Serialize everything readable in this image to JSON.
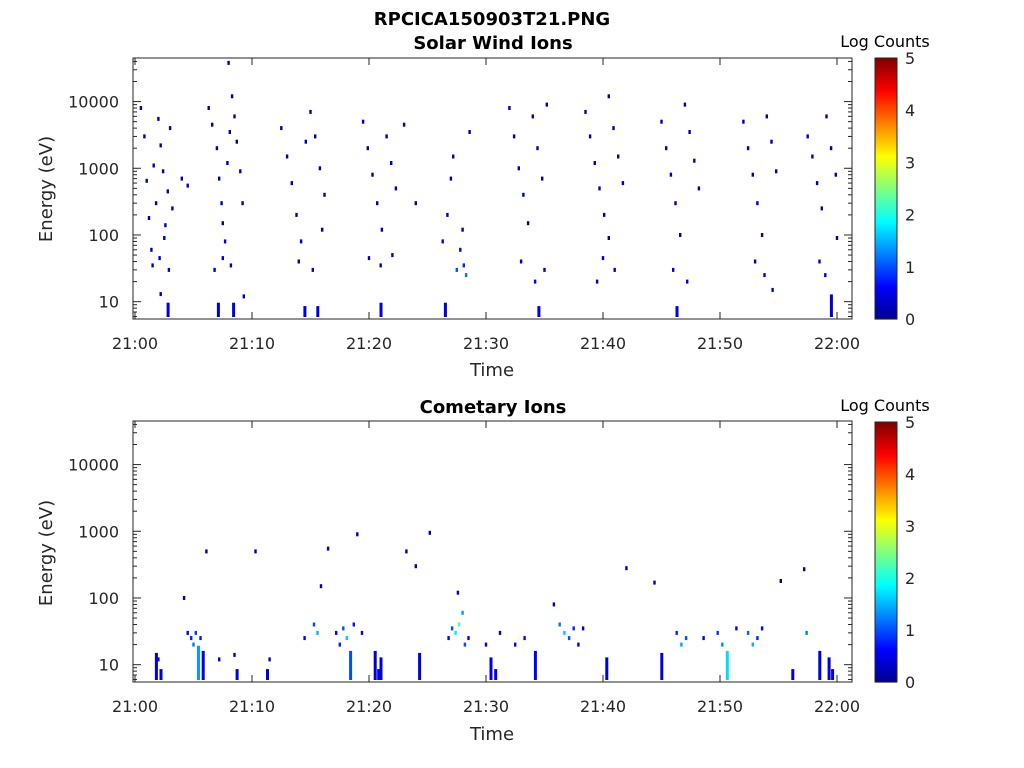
{
  "figure_title": "RPCICA150903T21.PNG",
  "panels": [
    {
      "title": "Solar Wind Ions",
      "xlabel": "Time",
      "ylabel": "Energy (eV)",
      "colorbar_label": "Log Counts"
    },
    {
      "title": "Cometary Ions",
      "xlabel": "Time",
      "ylabel": "Energy (eV)",
      "colorbar_label": "Log Counts"
    }
  ],
  "x_ticks": [
    "21:00",
    "21:10",
    "21:20",
    "21:30",
    "21:40",
    "21:50",
    "22:00"
  ],
  "y_ticks": [
    "10",
    "100",
    "1000",
    "10000"
  ],
  "colorbar_ticks": [
    "0",
    "1",
    "2",
    "3",
    "4",
    "5"
  ],
  "colormap": [
    "#00008f",
    "#0000ff",
    "#0080ff",
    "#00ffff",
    "#80ff80",
    "#ffff00",
    "#ff8000",
    "#ff0000",
    "#800000"
  ],
  "chart_data": [
    {
      "type": "heatmap",
      "title": "Solar Wind Ions",
      "xlabel": "Time",
      "ylabel": "Energy (eV)",
      "x_range": [
        "21:00",
        "22:00"
      ],
      "ylim": [
        5.5,
        45000
      ],
      "y_scale": "log",
      "color_range": [
        0,
        5
      ],
      "colorbar_label": "Log Counts",
      "points": [
        {
          "t": 0.5,
          "e": 8000,
          "c": 0.3
        },
        {
          "t": 0.8,
          "e": 3000,
          "c": 0.2
        },
        {
          "t": 1.0,
          "e": 650,
          "c": 0.2
        },
        {
          "t": 1.2,
          "e": 180,
          "c": 0.2
        },
        {
          "t": 1.4,
          "e": 60,
          "c": 0.2
        },
        {
          "t": 1.6,
          "e": 1100,
          "c": 0.2
        },
        {
          "t": 1.8,
          "e": 300,
          "c": 0.2
        },
        {
          "t": 2.0,
          "e": 5500,
          "c": 0.2
        },
        {
          "t": 2.2,
          "e": 2200,
          "c": 0.2
        },
        {
          "t": 2.4,
          "e": 900,
          "c": 0.2
        },
        {
          "t": 2.6,
          "e": 140,
          "c": 0.2
        },
        {
          "t": 2.8,
          "e": 450,
          "c": 0.2
        },
        {
          "t": 3.0,
          "e": 4000,
          "c": 0.2
        },
        {
          "t": 3.2,
          "e": 250,
          "c": 0.2
        },
        {
          "t": 2.5,
          "e": 90,
          "c": 0.2
        },
        {
          "t": 1.5,
          "e": 35,
          "c": 0.3
        },
        {
          "t": 2.1,
          "e": 45,
          "c": 0.2
        },
        {
          "t": 2.9,
          "e": 30,
          "c": 0.3
        },
        {
          "t": 4.0,
          "e": 700,
          "c": 0.2
        },
        {
          "t": 4.5,
          "e": 550,
          "c": 0.2
        },
        {
          "t": 2.2,
          "e": 13,
          "c": 0.3
        },
        {
          "t": 2.8,
          "e": 9,
          "c": 0.4
        },
        {
          "t": 6.3,
          "e": 8000,
          "c": 0.2
        },
        {
          "t": 6.6,
          "e": 4500,
          "c": 0.2
        },
        {
          "t": 7.0,
          "e": 2000,
          "c": 0.2
        },
        {
          "t": 7.2,
          "e": 700,
          "c": 0.2
        },
        {
          "t": 7.4,
          "e": 300,
          "c": 0.2
        },
        {
          "t": 7.5,
          "e": 150,
          "c": 0.2
        },
        {
          "t": 7.7,
          "e": 80,
          "c": 0.3
        },
        {
          "t": 7.9,
          "e": 1200,
          "c": 0.2
        },
        {
          "t": 8.1,
          "e": 3500,
          "c": 0.2
        },
        {
          "t": 8.3,
          "e": 12000,
          "c": 0.2
        },
        {
          "t": 8.5,
          "e": 6000,
          "c": 0.2
        },
        {
          "t": 8.7,
          "e": 2500,
          "c": 0.2
        },
        {
          "t": 9.0,
          "e": 900,
          "c": 0.2
        },
        {
          "t": 9.2,
          "e": 300,
          "c": 0.2
        },
        {
          "t": 8.0,
          "e": 38000,
          "c": 0.2
        },
        {
          "t": 7.5,
          "e": 45,
          "c": 0.3
        },
        {
          "t": 8.2,
          "e": 35,
          "c": 0.3
        },
        {
          "t": 6.8,
          "e": 30,
          "c": 0.3
        },
        {
          "t": 7.1,
          "e": 9,
          "c": 0.4
        },
        {
          "t": 8.4,
          "e": 9,
          "c": 0.4
        },
        {
          "t": 9.3,
          "e": 12,
          "c": 0.3
        },
        {
          "t": 12.5,
          "e": 4000,
          "c": 0.2
        },
        {
          "t": 13.0,
          "e": 1500,
          "c": 0.2
        },
        {
          "t": 13.4,
          "e": 600,
          "c": 0.2
        },
        {
          "t": 13.8,
          "e": 200,
          "c": 0.2
        },
        {
          "t": 14.2,
          "e": 80,
          "c": 0.3
        },
        {
          "t": 14.6,
          "e": 2500,
          "c": 0.2
        },
        {
          "t": 15.0,
          "e": 7000,
          "c": 0.2
        },
        {
          "t": 15.4,
          "e": 3000,
          "c": 0.2
        },
        {
          "t": 15.8,
          "e": 1000,
          "c": 0.2
        },
        {
          "t": 16.2,
          "e": 400,
          "c": 0.2
        },
        {
          "t": 14.0,
          "e": 40,
          "c": 0.3
        },
        {
          "t": 15.2,
          "e": 30,
          "c": 0.3
        },
        {
          "t": 14.5,
          "e": 8,
          "c": 0.4
        },
        {
          "t": 15.6,
          "e": 8,
          "c": 0.4
        },
        {
          "t": 16.0,
          "e": 120,
          "c": 0.2
        },
        {
          "t": 19.5,
          "e": 5000,
          "c": 0.2
        },
        {
          "t": 19.9,
          "e": 2000,
          "c": 0.2
        },
        {
          "t": 20.3,
          "e": 800,
          "c": 0.2
        },
        {
          "t": 20.7,
          "e": 300,
          "c": 0.2
        },
        {
          "t": 21.1,
          "e": 120,
          "c": 0.2
        },
        {
          "t": 21.5,
          "e": 3000,
          "c": 0.2
        },
        {
          "t": 21.9,
          "e": 1200,
          "c": 0.2
        },
        {
          "t": 22.3,
          "e": 500,
          "c": 0.2
        },
        {
          "t": 20.0,
          "e": 45,
          "c": 0.3
        },
        {
          "t": 21.0,
          "e": 35,
          "c": 0.3
        },
        {
          "t": 22.0,
          "e": 50,
          "c": 0.3
        },
        {
          "t": 21.0,
          "e": 9,
          "c": 0.4
        },
        {
          "t": 23.0,
          "e": 4500,
          "c": 0.2
        },
        {
          "t": 24.0,
          "e": 300,
          "c": 0.2
        },
        {
          "t": 26.3,
          "e": 80,
          "c": 0.5
        },
        {
          "t": 26.7,
          "e": 200,
          "c": 0.2
        },
        {
          "t": 27.2,
          "e": 1500,
          "c": 0.2
        },
        {
          "t": 27.5,
          "e": 30,
          "c": 1.0
        },
        {
          "t": 27.8,
          "e": 60,
          "c": 0.6
        },
        {
          "t": 28.1,
          "e": 35,
          "c": 0.8
        },
        {
          "t": 28.3,
          "e": 25,
          "c": 1.2
        },
        {
          "t": 28.6,
          "e": 3500,
          "c": 0.2
        },
        {
          "t": 27.0,
          "e": 700,
          "c": 0.2
        },
        {
          "t": 28.0,
          "e": 120,
          "c": 0.2
        },
        {
          "t": 26.5,
          "e": 9,
          "c": 0.4
        },
        {
          "t": 32.0,
          "e": 8000,
          "c": 0.2
        },
        {
          "t": 32.4,
          "e": 3000,
          "c": 0.2
        },
        {
          "t": 32.8,
          "e": 1000,
          "c": 0.2
        },
        {
          "t": 33.2,
          "e": 400,
          "c": 0.2
        },
        {
          "t": 33.6,
          "e": 150,
          "c": 0.2
        },
        {
          "t": 34.0,
          "e": 6000,
          "c": 0.2
        },
        {
          "t": 34.4,
          "e": 2000,
          "c": 0.2
        },
        {
          "t": 34.8,
          "e": 700,
          "c": 0.2
        },
        {
          "t": 35.2,
          "e": 9000,
          "c": 0.2
        },
        {
          "t": 33.0,
          "e": 40,
          "c": 0.3
        },
        {
          "t": 34.2,
          "e": 20,
          "c": 0.5
        },
        {
          "t": 35.0,
          "e": 30,
          "c": 0.3
        },
        {
          "t": 34.5,
          "e": 8,
          "c": 0.4
        },
        {
          "t": 38.5,
          "e": 7000,
          "c": 0.2
        },
        {
          "t": 38.9,
          "e": 3000,
          "c": 0.2
        },
        {
          "t": 39.3,
          "e": 1200,
          "c": 0.2
        },
        {
          "t": 39.7,
          "e": 500,
          "c": 0.2
        },
        {
          "t": 40.1,
          "e": 200,
          "c": 0.2
        },
        {
          "t": 40.5,
          "e": 12000,
          "c": 0.2
        },
        {
          "t": 40.9,
          "e": 4000,
          "c": 0.2
        },
        {
          "t": 41.3,
          "e": 1500,
          "c": 0.2
        },
        {
          "t": 41.7,
          "e": 600,
          "c": 0.2
        },
        {
          "t": 40.0,
          "e": 45,
          "c": 0.3
        },
        {
          "t": 41.0,
          "e": 30,
          "c": 0.3
        },
        {
          "t": 39.5,
          "e": 20,
          "c": 0.3
        },
        {
          "t": 40.5,
          "e": 90,
          "c": 0.2
        },
        {
          "t": 45.0,
          "e": 5000,
          "c": 0.2
        },
        {
          "t": 45.4,
          "e": 2000,
          "c": 0.2
        },
        {
          "t": 45.8,
          "e": 800,
          "c": 0.2
        },
        {
          "t": 46.2,
          "e": 300,
          "c": 0.2
        },
        {
          "t": 46.6,
          "e": 100,
          "c": 0.2
        },
        {
          "t": 47.0,
          "e": 9000,
          "c": 0.2
        },
        {
          "t": 47.4,
          "e": 3500,
          "c": 0.2
        },
        {
          "t": 47.8,
          "e": 1300,
          "c": 0.2
        },
        {
          "t": 48.2,
          "e": 500,
          "c": 0.2
        },
        {
          "t": 46.0,
          "e": 30,
          "c": 0.3
        },
        {
          "t": 47.2,
          "e": 20,
          "c": 0.4
        },
        {
          "t": 46.3,
          "e": 8,
          "c": 0.4
        },
        {
          "t": 52.0,
          "e": 5000,
          "c": 0.2
        },
        {
          "t": 52.4,
          "e": 2000,
          "c": 0.2
        },
        {
          "t": 52.8,
          "e": 800,
          "c": 0.2
        },
        {
          "t": 53.2,
          "e": 300,
          "c": 0.2
        },
        {
          "t": 53.6,
          "e": 100,
          "c": 0.2
        },
        {
          "t": 54.0,
          "e": 6000,
          "c": 0.2
        },
        {
          "t": 54.4,
          "e": 2500,
          "c": 0.2
        },
        {
          "t": 54.8,
          "e": 900,
          "c": 0.2
        },
        {
          "t": 53.0,
          "e": 40,
          "c": 0.3
        },
        {
          "t": 53.8,
          "e": 25,
          "c": 0.4
        },
        {
          "t": 54.5,
          "e": 15,
          "c": 0.3
        },
        {
          "t": 57.5,
          "e": 3000,
          "c": 0.2
        },
        {
          "t": 57.9,
          "e": 1500,
          "c": 0.2
        },
        {
          "t": 58.3,
          "e": 600,
          "c": 0.2
        },
        {
          "t": 58.7,
          "e": 250,
          "c": 0.2
        },
        {
          "t": 59.1,
          "e": 6000,
          "c": 0.2
        },
        {
          "t": 59.5,
          "e": 2000,
          "c": 0.2
        },
        {
          "t": 59.9,
          "e": 800,
          "c": 0.2
        },
        {
          "t": 58.5,
          "e": 40,
          "c": 0.3
        },
        {
          "t": 59.0,
          "e": 25,
          "c": 0.3
        },
        {
          "t": 59.5,
          "e": 12,
          "c": 0.4
        },
        {
          "t": 60.0,
          "e": 90,
          "c": 0.2
        }
      ]
    },
    {
      "type": "heatmap",
      "title": "Cometary Ions",
      "xlabel": "Time",
      "ylabel": "Energy (eV)",
      "x_range": [
        "21:00",
        "22:00"
      ],
      "ylim": [
        5.5,
        45000
      ],
      "y_scale": "log",
      "color_range": [
        0,
        5
      ],
      "colorbar_label": "Log Counts",
      "points": [
        {
          "t": 1.8,
          "e": 14,
          "c": 0.4
        },
        {
          "t": 2.0,
          "e": 12,
          "c": 0.3
        },
        {
          "t": 2.2,
          "e": 8,
          "c": 0.4
        },
        {
          "t": 4.2,
          "e": 100,
          "c": 0.3
        },
        {
          "t": 4.5,
          "e": 30,
          "c": 0.5
        },
        {
          "t": 4.8,
          "e": 25,
          "c": 0.8
        },
        {
          "t": 5.0,
          "e": 20,
          "c": 1.2
        },
        {
          "t": 5.2,
          "e": 30,
          "c": 0.9
        },
        {
          "t": 5.4,
          "e": 18,
          "c": 1.4
        },
        {
          "t": 5.6,
          "e": 25,
          "c": 0.7
        },
        {
          "t": 5.8,
          "e": 15,
          "c": 0.5
        },
        {
          "t": 6.1,
          "e": 500,
          "c": 0.2
        },
        {
          "t": 7.2,
          "e": 12,
          "c": 0.3
        },
        {
          "t": 8.5,
          "e": 14,
          "c": 0.3
        },
        {
          "t": 8.7,
          "e": 8,
          "c": 0.4
        },
        {
          "t": 10.3,
          "e": 500,
          "c": 0.2
        },
        {
          "t": 11.3,
          "e": 8,
          "c": 0.4
        },
        {
          "t": 11.5,
          "e": 12,
          "c": 0.3
        },
        {
          "t": 14.5,
          "e": 25,
          "c": 0.5
        },
        {
          "t": 15.3,
          "e": 40,
          "c": 1.0
        },
        {
          "t": 15.6,
          "e": 30,
          "c": 1.5
        },
        {
          "t": 15.9,
          "e": 150,
          "c": 0.2
        },
        {
          "t": 16.5,
          "e": 550,
          "c": 0.2
        },
        {
          "t": 17.2,
          "e": 30,
          "c": 0.6
        },
        {
          "t": 17.5,
          "e": 20,
          "c": 0.8
        },
        {
          "t": 17.8,
          "e": 35,
          "c": 1.0
        },
        {
          "t": 18.1,
          "e": 25,
          "c": 1.6
        },
        {
          "t": 18.4,
          "e": 15,
          "c": 1.0
        },
        {
          "t": 18.7,
          "e": 40,
          "c": 0.7
        },
        {
          "t": 19.0,
          "e": 900,
          "c": 0.2
        },
        {
          "t": 19.4,
          "e": 30,
          "c": 0.5
        },
        {
          "t": 20.5,
          "e": 15,
          "c": 0.4
        },
        {
          "t": 20.8,
          "e": 8,
          "c": 0.5
        },
        {
          "t": 21.0,
          "e": 12,
          "c": 0.4
        },
        {
          "t": 23.2,
          "e": 500,
          "c": 0.2
        },
        {
          "t": 24.0,
          "e": 300,
          "c": 0.2
        },
        {
          "t": 24.3,
          "e": 14,
          "c": 0.5
        },
        {
          "t": 25.2,
          "e": 950,
          "c": 0.2
        },
        {
          "t": 26.8,
          "e": 25,
          "c": 0.6
        },
        {
          "t": 27.1,
          "e": 35,
          "c": 1.0
        },
        {
          "t": 27.4,
          "e": 30,
          "c": 1.8
        },
        {
          "t": 27.7,
          "e": 40,
          "c": 2.2
        },
        {
          "t": 28.0,
          "e": 60,
          "c": 1.4
        },
        {
          "t": 28.2,
          "e": 20,
          "c": 1.0
        },
        {
          "t": 28.5,
          "e": 25,
          "c": 0.6
        },
        {
          "t": 27.6,
          "e": 120,
          "c": 0.3
        },
        {
          "t": 30.0,
          "e": 20,
          "c": 0.4
        },
        {
          "t": 30.4,
          "e": 12,
          "c": 0.5
        },
        {
          "t": 30.8,
          "e": 8,
          "c": 0.5
        },
        {
          "t": 31.2,
          "e": 30,
          "c": 0.4
        },
        {
          "t": 32.5,
          "e": 20,
          "c": 0.5
        },
        {
          "t": 33.3,
          "e": 25,
          "c": 0.6
        },
        {
          "t": 34.2,
          "e": 15,
          "c": 0.6
        },
        {
          "t": 35.8,
          "e": 80,
          "c": 0.2
        },
        {
          "t": 36.3,
          "e": 40,
          "c": 1.2
        },
        {
          "t": 36.7,
          "e": 30,
          "c": 1.6
        },
        {
          "t": 37.1,
          "e": 25,
          "c": 1.0
        },
        {
          "t": 37.5,
          "e": 35,
          "c": 0.8
        },
        {
          "t": 37.9,
          "e": 20,
          "c": 0.5
        },
        {
          "t": 38.3,
          "e": 35,
          "c": 0.4
        },
        {
          "t": 40.3,
          "e": 12,
          "c": 0.4
        },
        {
          "t": 42.0,
          "e": 280,
          "c": 0.2
        },
        {
          "t": 44.4,
          "e": 170,
          "c": 0.2
        },
        {
          "t": 45.0,
          "e": 14,
          "c": 0.4
        },
        {
          "t": 46.3,
          "e": 30,
          "c": 0.8
        },
        {
          "t": 46.7,
          "e": 20,
          "c": 1.4
        },
        {
          "t": 47.1,
          "e": 25,
          "c": 1.0
        },
        {
          "t": 48.6,
          "e": 25,
          "c": 0.5
        },
        {
          "t": 49.8,
          "e": 30,
          "c": 0.9
        },
        {
          "t": 50.2,
          "e": 20,
          "c": 1.3
        },
        {
          "t": 50.6,
          "e": 15,
          "c": 1.7
        },
        {
          "t": 51.4,
          "e": 35,
          "c": 0.5
        },
        {
          "t": 52.4,
          "e": 30,
          "c": 1.1
        },
        {
          "t": 52.8,
          "e": 20,
          "c": 1.5
        },
        {
          "t": 53.2,
          "e": 25,
          "c": 0.8
        },
        {
          "t": 53.6,
          "e": 35,
          "c": 0.6
        },
        {
          "t": 55.2,
          "e": 180,
          "c": 0.2
        },
        {
          "t": 56.2,
          "e": 8,
          "c": 0.4
        },
        {
          "t": 57.2,
          "e": 270,
          "c": 0.2
        },
        {
          "t": 57.4,
          "e": 30,
          "c": 1.2
        },
        {
          "t": 58.5,
          "e": 15,
          "c": 0.4
        },
        {
          "t": 59.3,
          "e": 12,
          "c": 0.4
        },
        {
          "t": 59.6,
          "e": 8,
          "c": 0.5
        }
      ]
    }
  ]
}
